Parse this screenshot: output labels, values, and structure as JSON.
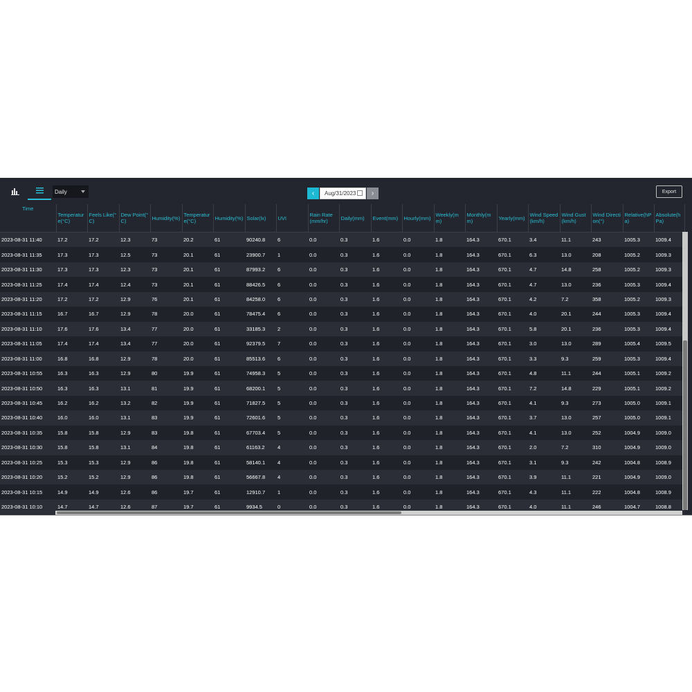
{
  "toolbar": {
    "chart_icon": "bar-chart-icon",
    "table_icon": "list-icon",
    "range_value": "Daily",
    "date_value": "Aug/31/2023",
    "prev_label": "‹",
    "next_label": "›",
    "export_label": "Export"
  },
  "columns": [
    "Time",
    "Temperature(°C)",
    "Feels Like(°C)",
    "Dew Point(°C)",
    "Humidity(%)",
    "Temperature(°C)",
    "Humidity(%)",
    "Solar(lx)",
    "UVI",
    "Rain Rate(mm/hr)",
    "Daily(mm)",
    "Event(mm)",
    "Hourly(mm)",
    "Weekly(mm)",
    "Monthly(mm)",
    "Yearly(mm)",
    "Wind Speed(km/h)",
    "Wind Gust(km/h)",
    "Wind Direction(°)",
    "Relative(hPa)",
    "Absolute(hPa)"
  ],
  "rows": [
    [
      "2023-08-31 11:40",
      "17.2",
      "17.2",
      "12.3",
      "73",
      "20.2",
      "61",
      "90240.8",
      "6",
      "0.0",
      "0.3",
      "1.6",
      "0.0",
      "1.8",
      "164.3",
      "670.1",
      "3.4",
      "11.1",
      "243",
      "1005.3",
      "1009.4"
    ],
    [
      "2023-08-31 11:35",
      "17.3",
      "17.3",
      "12.5",
      "73",
      "20.1",
      "61",
      "23900.7",
      "1",
      "0.0",
      "0.3",
      "1.6",
      "0.0",
      "1.8",
      "164.3",
      "670.1",
      "6.3",
      "13.0",
      "208",
      "1005.2",
      "1009.3"
    ],
    [
      "2023-08-31 11:30",
      "17.3",
      "17.3",
      "12.3",
      "73",
      "20.1",
      "61",
      "87993.2",
      "6",
      "0.0",
      "0.3",
      "1.6",
      "0.0",
      "1.8",
      "164.3",
      "670.1",
      "4.7",
      "14.8",
      "258",
      "1005.2",
      "1009.3"
    ],
    [
      "2023-08-31 11:25",
      "17.4",
      "17.4",
      "12.4",
      "73",
      "20.1",
      "61",
      "88426.5",
      "6",
      "0.0",
      "0.3",
      "1.6",
      "0.0",
      "1.8",
      "164.3",
      "670.1",
      "4.7",
      "13.0",
      "236",
      "1005.3",
      "1009.4"
    ],
    [
      "2023-08-31 11:20",
      "17.2",
      "17.2",
      "12.9",
      "76",
      "20.1",
      "61",
      "84258.0",
      "6",
      "0.0",
      "0.3",
      "1.6",
      "0.0",
      "1.8",
      "164.3",
      "670.1",
      "4.2",
      "7.2",
      "358",
      "1005.2",
      "1009.3"
    ],
    [
      "2023-08-31 11:15",
      "16.7",
      "16.7",
      "12.9",
      "78",
      "20.0",
      "61",
      "78475.4",
      "6",
      "0.0",
      "0.3",
      "1.6",
      "0.0",
      "1.8",
      "164.3",
      "670.1",
      "4.0",
      "20.1",
      "244",
      "1005.3",
      "1009.4"
    ],
    [
      "2023-08-31 11:10",
      "17.6",
      "17.6",
      "13.4",
      "77",
      "20.0",
      "61",
      "33185.3",
      "2",
      "0.0",
      "0.3",
      "1.6",
      "0.0",
      "1.8",
      "164.3",
      "670.1",
      "5.8",
      "20.1",
      "236",
      "1005.3",
      "1009.4"
    ],
    [
      "2023-08-31 11:05",
      "17.4",
      "17.4",
      "13.4",
      "77",
      "20.0",
      "61",
      "92379.5",
      "7",
      "0.0",
      "0.3",
      "1.6",
      "0.0",
      "1.8",
      "164.3",
      "670.1",
      "3.0",
      "13.0",
      "289",
      "1005.4",
      "1009.5"
    ],
    [
      "2023-08-31 11:00",
      "16.8",
      "16.8",
      "12.9",
      "78",
      "20.0",
      "61",
      "85513.6",
      "6",
      "0.0",
      "0.3",
      "1.6",
      "0.0",
      "1.8",
      "164.3",
      "670.1",
      "3.3",
      "9.3",
      "259",
      "1005.3",
      "1009.4"
    ],
    [
      "2023-08-31 10:55",
      "16.3",
      "16.3",
      "12.9",
      "80",
      "19.9",
      "61",
      "74958.3",
      "5",
      "0.0",
      "0.3",
      "1.6",
      "0.0",
      "1.8",
      "164.3",
      "670.1",
      "4.8",
      "11.1",
      "244",
      "1005.1",
      "1009.2"
    ],
    [
      "2023-08-31 10:50",
      "16.3",
      "16.3",
      "13.1",
      "81",
      "19.9",
      "61",
      "68200.1",
      "5",
      "0.0",
      "0.3",
      "1.6",
      "0.0",
      "1.8",
      "164.3",
      "670.1",
      "7.2",
      "14.8",
      "229",
      "1005.1",
      "1009.2"
    ],
    [
      "2023-08-31 10:45",
      "16.2",
      "16.2",
      "13.2",
      "82",
      "19.9",
      "61",
      "71827.5",
      "5",
      "0.0",
      "0.3",
      "1.6",
      "0.0",
      "1.8",
      "164.3",
      "670.1",
      "4.1",
      "9.3",
      "273",
      "1005.0",
      "1009.1"
    ],
    [
      "2023-08-31 10:40",
      "16.0",
      "16.0",
      "13.1",
      "83",
      "19.9",
      "61",
      "72601.6",
      "5",
      "0.0",
      "0.3",
      "1.6",
      "0.0",
      "1.8",
      "164.3",
      "670.1",
      "3.7",
      "13.0",
      "257",
      "1005.0",
      "1009.1"
    ],
    [
      "2023-08-31 10:35",
      "15.8",
      "15.8",
      "12.9",
      "83",
      "19.8",
      "61",
      "67703.4",
      "5",
      "0.0",
      "0.3",
      "1.6",
      "0.0",
      "1.8",
      "164.3",
      "670.1",
      "4.1",
      "13.0",
      "252",
      "1004.9",
      "1009.0"
    ],
    [
      "2023-08-31 10:30",
      "15.8",
      "15.8",
      "13.1",
      "84",
      "19.8",
      "61",
      "61163.2",
      "4",
      "0.0",
      "0.3",
      "1.6",
      "0.0",
      "1.8",
      "164.3",
      "670.1",
      "2.0",
      "7.2",
      "310",
      "1004.9",
      "1009.0"
    ],
    [
      "2023-08-31 10:25",
      "15.3",
      "15.3",
      "12.9",
      "86",
      "19.8",
      "61",
      "58140.1",
      "4",
      "0.0",
      "0.3",
      "1.6",
      "0.0",
      "1.8",
      "164.3",
      "670.1",
      "3.1",
      "9.3",
      "242",
      "1004.8",
      "1008.9"
    ],
    [
      "2023-08-31 10:20",
      "15.2",
      "15.2",
      "12.9",
      "86",
      "19.8",
      "61",
      "56667.8",
      "4",
      "0.0",
      "0.3",
      "1.6",
      "0.0",
      "1.8",
      "164.3",
      "670.1",
      "3.9",
      "11.1",
      "221",
      "1004.9",
      "1009.0"
    ],
    [
      "2023-08-31 10:15",
      "14.9",
      "14.9",
      "12.6",
      "86",
      "19.7",
      "61",
      "12910.7",
      "1",
      "0.0",
      "0.3",
      "1.6",
      "0.0",
      "1.8",
      "164.3",
      "670.1",
      "4.3",
      "11.1",
      "222",
      "1004.8",
      "1008.9"
    ],
    [
      "2023-08-31 10:10",
      "14.7",
      "14.7",
      "12.6",
      "87",
      "19.7",
      "61",
      "9934.5",
      "0",
      "0.0",
      "0.3",
      "1.6",
      "0.0",
      "1.8",
      "164.3",
      "670.1",
      "4.0",
      "11.1",
      "246",
      "1004.7",
      "1008.8"
    ]
  ],
  "colors": {
    "accent": "#2bbfd6",
    "background": "#23262e",
    "row_alt": "#1f2229"
  }
}
